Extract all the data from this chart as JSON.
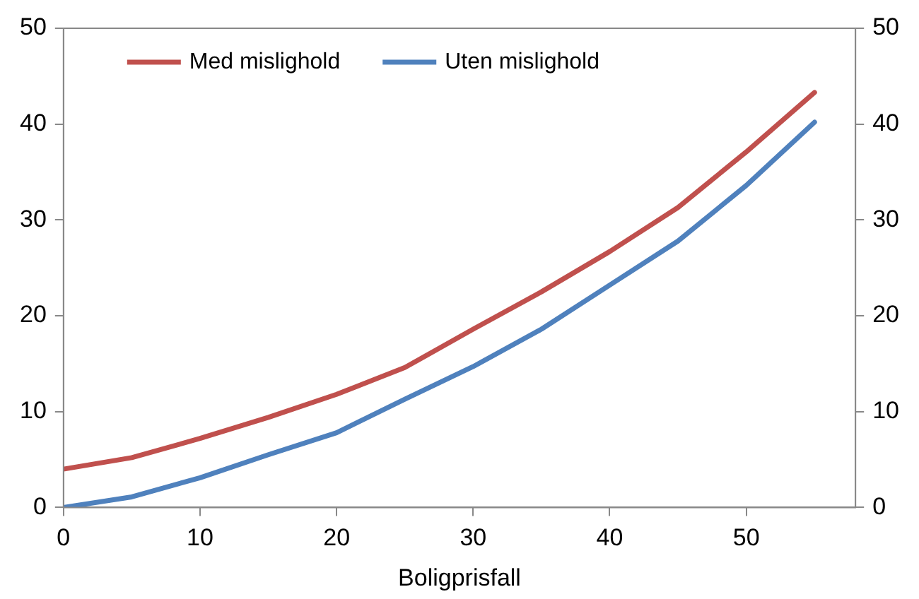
{
  "chart_data": {
    "type": "line",
    "xlabel": "Boligprisfall",
    "x": [
      0,
      5,
      10,
      15,
      20,
      25,
      30,
      35,
      40,
      45,
      50,
      55
    ],
    "series": [
      {
        "name": "Med mislighold",
        "color": "#c0504d",
        "values": [
          4.0,
          5.2,
          7.2,
          9.4,
          11.8,
          14.6,
          18.6,
          22.5,
          26.7,
          31.3,
          37.1,
          43.3
        ]
      },
      {
        "name": "Uten mislighold",
        "color": "#4f81bd",
        "values": [
          0,
          1.1,
          3.1,
          5.5,
          7.8,
          11.3,
          14.7,
          18.6,
          23.2,
          27.8,
          33.6,
          40.2
        ]
      }
    ],
    "xlim": [
      0,
      58
    ],
    "xticks": [
      0,
      10,
      20,
      30,
      40,
      50
    ],
    "ylim": [
      0,
      50
    ],
    "yticks": [
      0,
      10,
      20,
      30,
      40,
      50
    ],
    "y2lim": [
      0,
      50
    ],
    "y2ticks": [
      0,
      10,
      20,
      30,
      40,
      50
    ],
    "grid": false,
    "legend": "top left",
    "marker": "none",
    "line_style": "solid"
  }
}
